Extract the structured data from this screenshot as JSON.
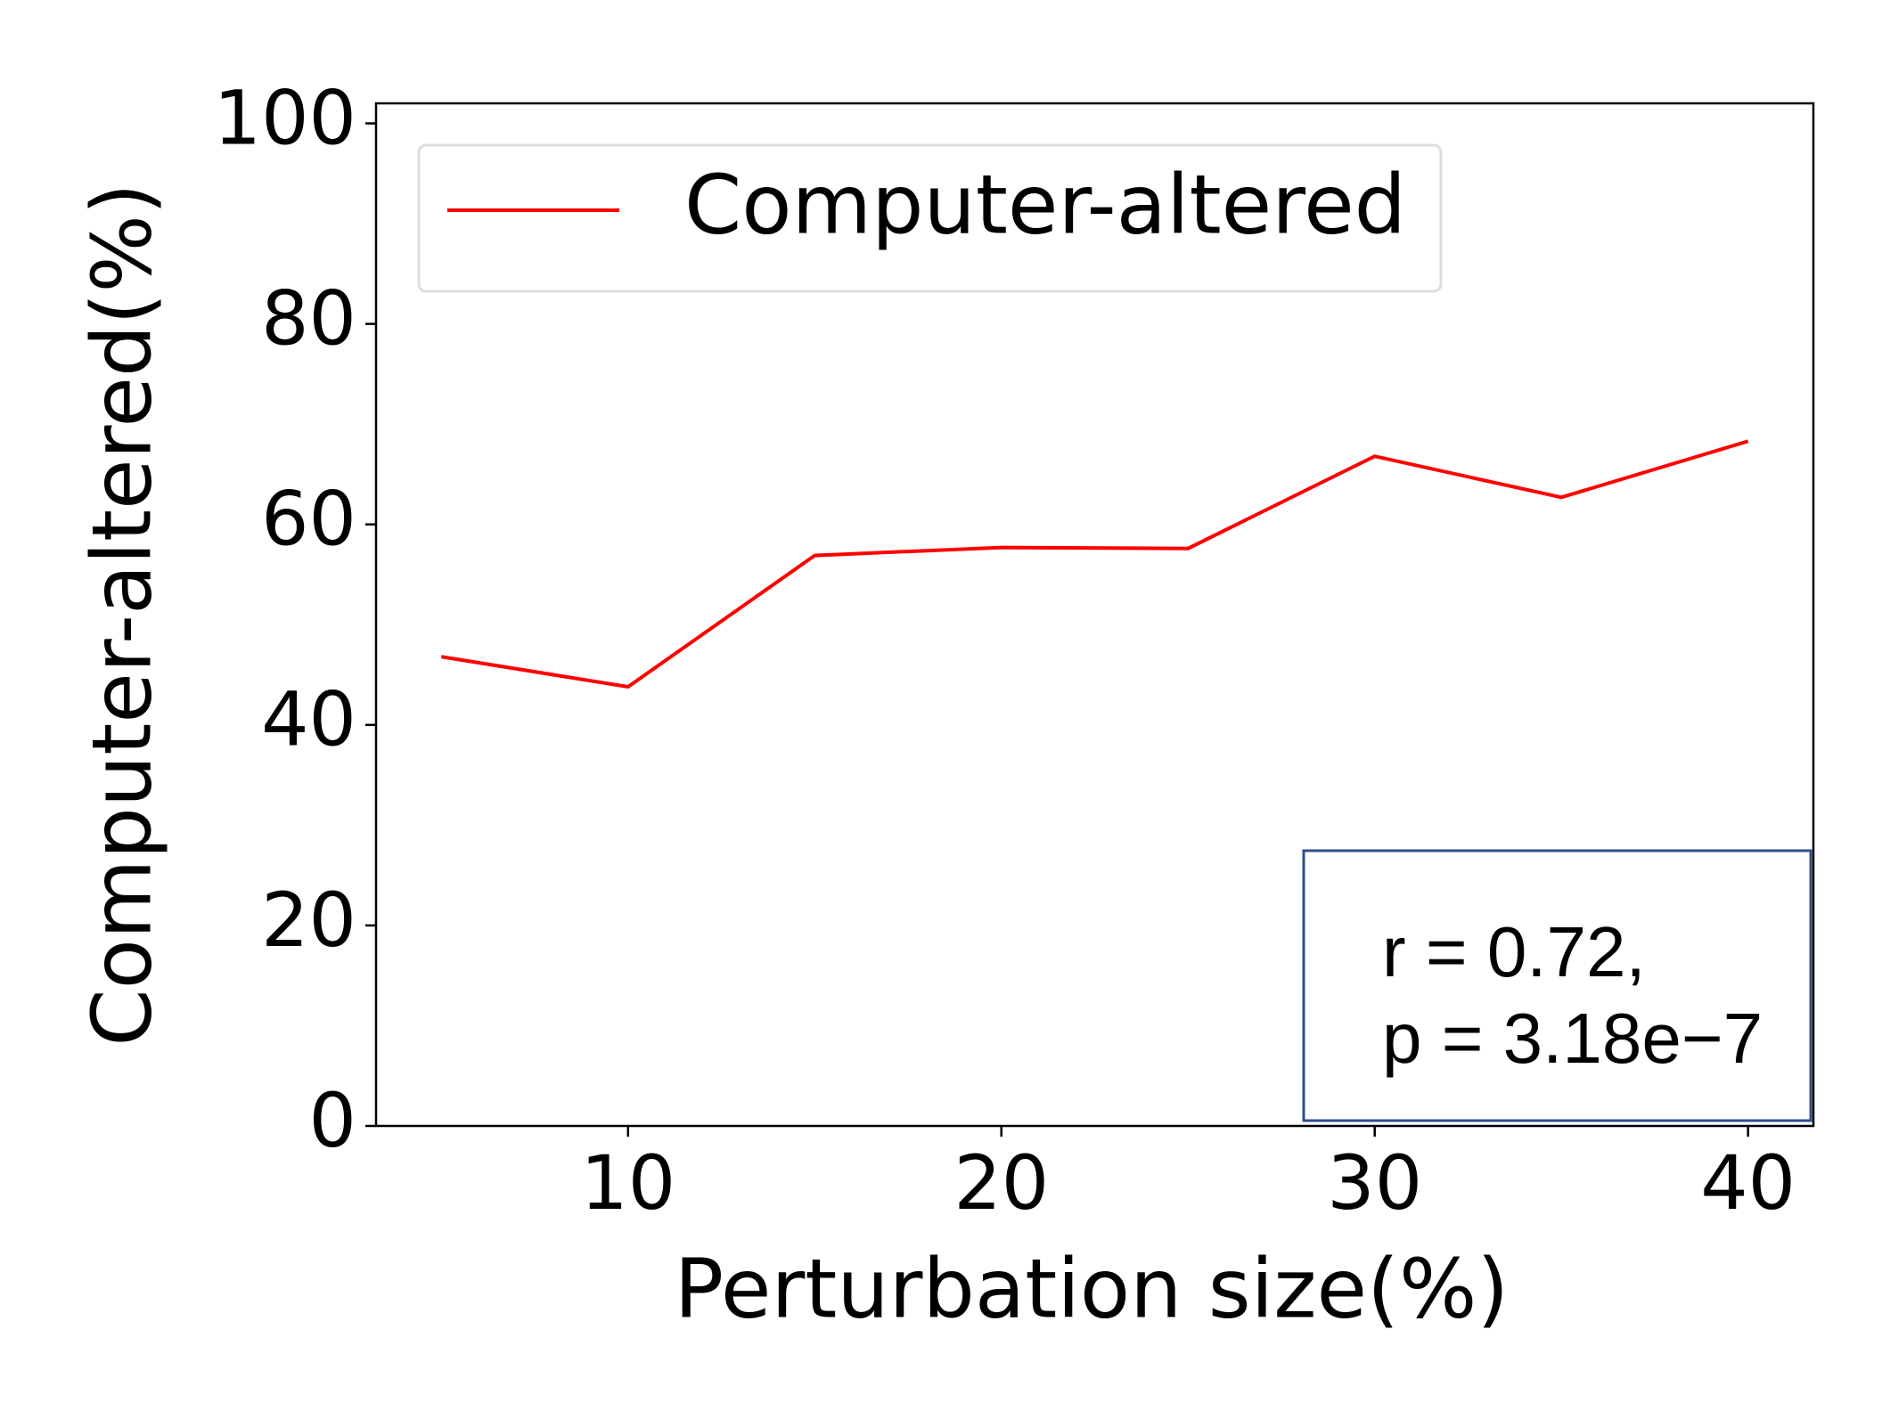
{
  "chart_data": {
    "type": "line",
    "x_label": "Perturbation size(%)",
    "y_label": "Computer-altered(%)",
    "x": [
      5,
      10,
      15,
      20,
      25,
      30,
      35,
      40
    ],
    "series": [
      {
        "name": "Computer-altered",
        "color": "#ff0000",
        "values": [
          46.8,
          43.8,
          56.9,
          57.7,
          57.6,
          66.8,
          62.7,
          68.3
        ]
      }
    ],
    "xlim": [
      3.25,
      41.75
    ],
    "xticks": [
      10,
      20,
      30,
      40
    ],
    "ylim": [
      0,
      102
    ],
    "yticks": [
      0,
      20,
      40,
      60,
      80,
      100
    ],
    "legend": "upper left",
    "annotation": [
      "r = 0.72,",
      "p = 3.18e−7"
    ]
  }
}
